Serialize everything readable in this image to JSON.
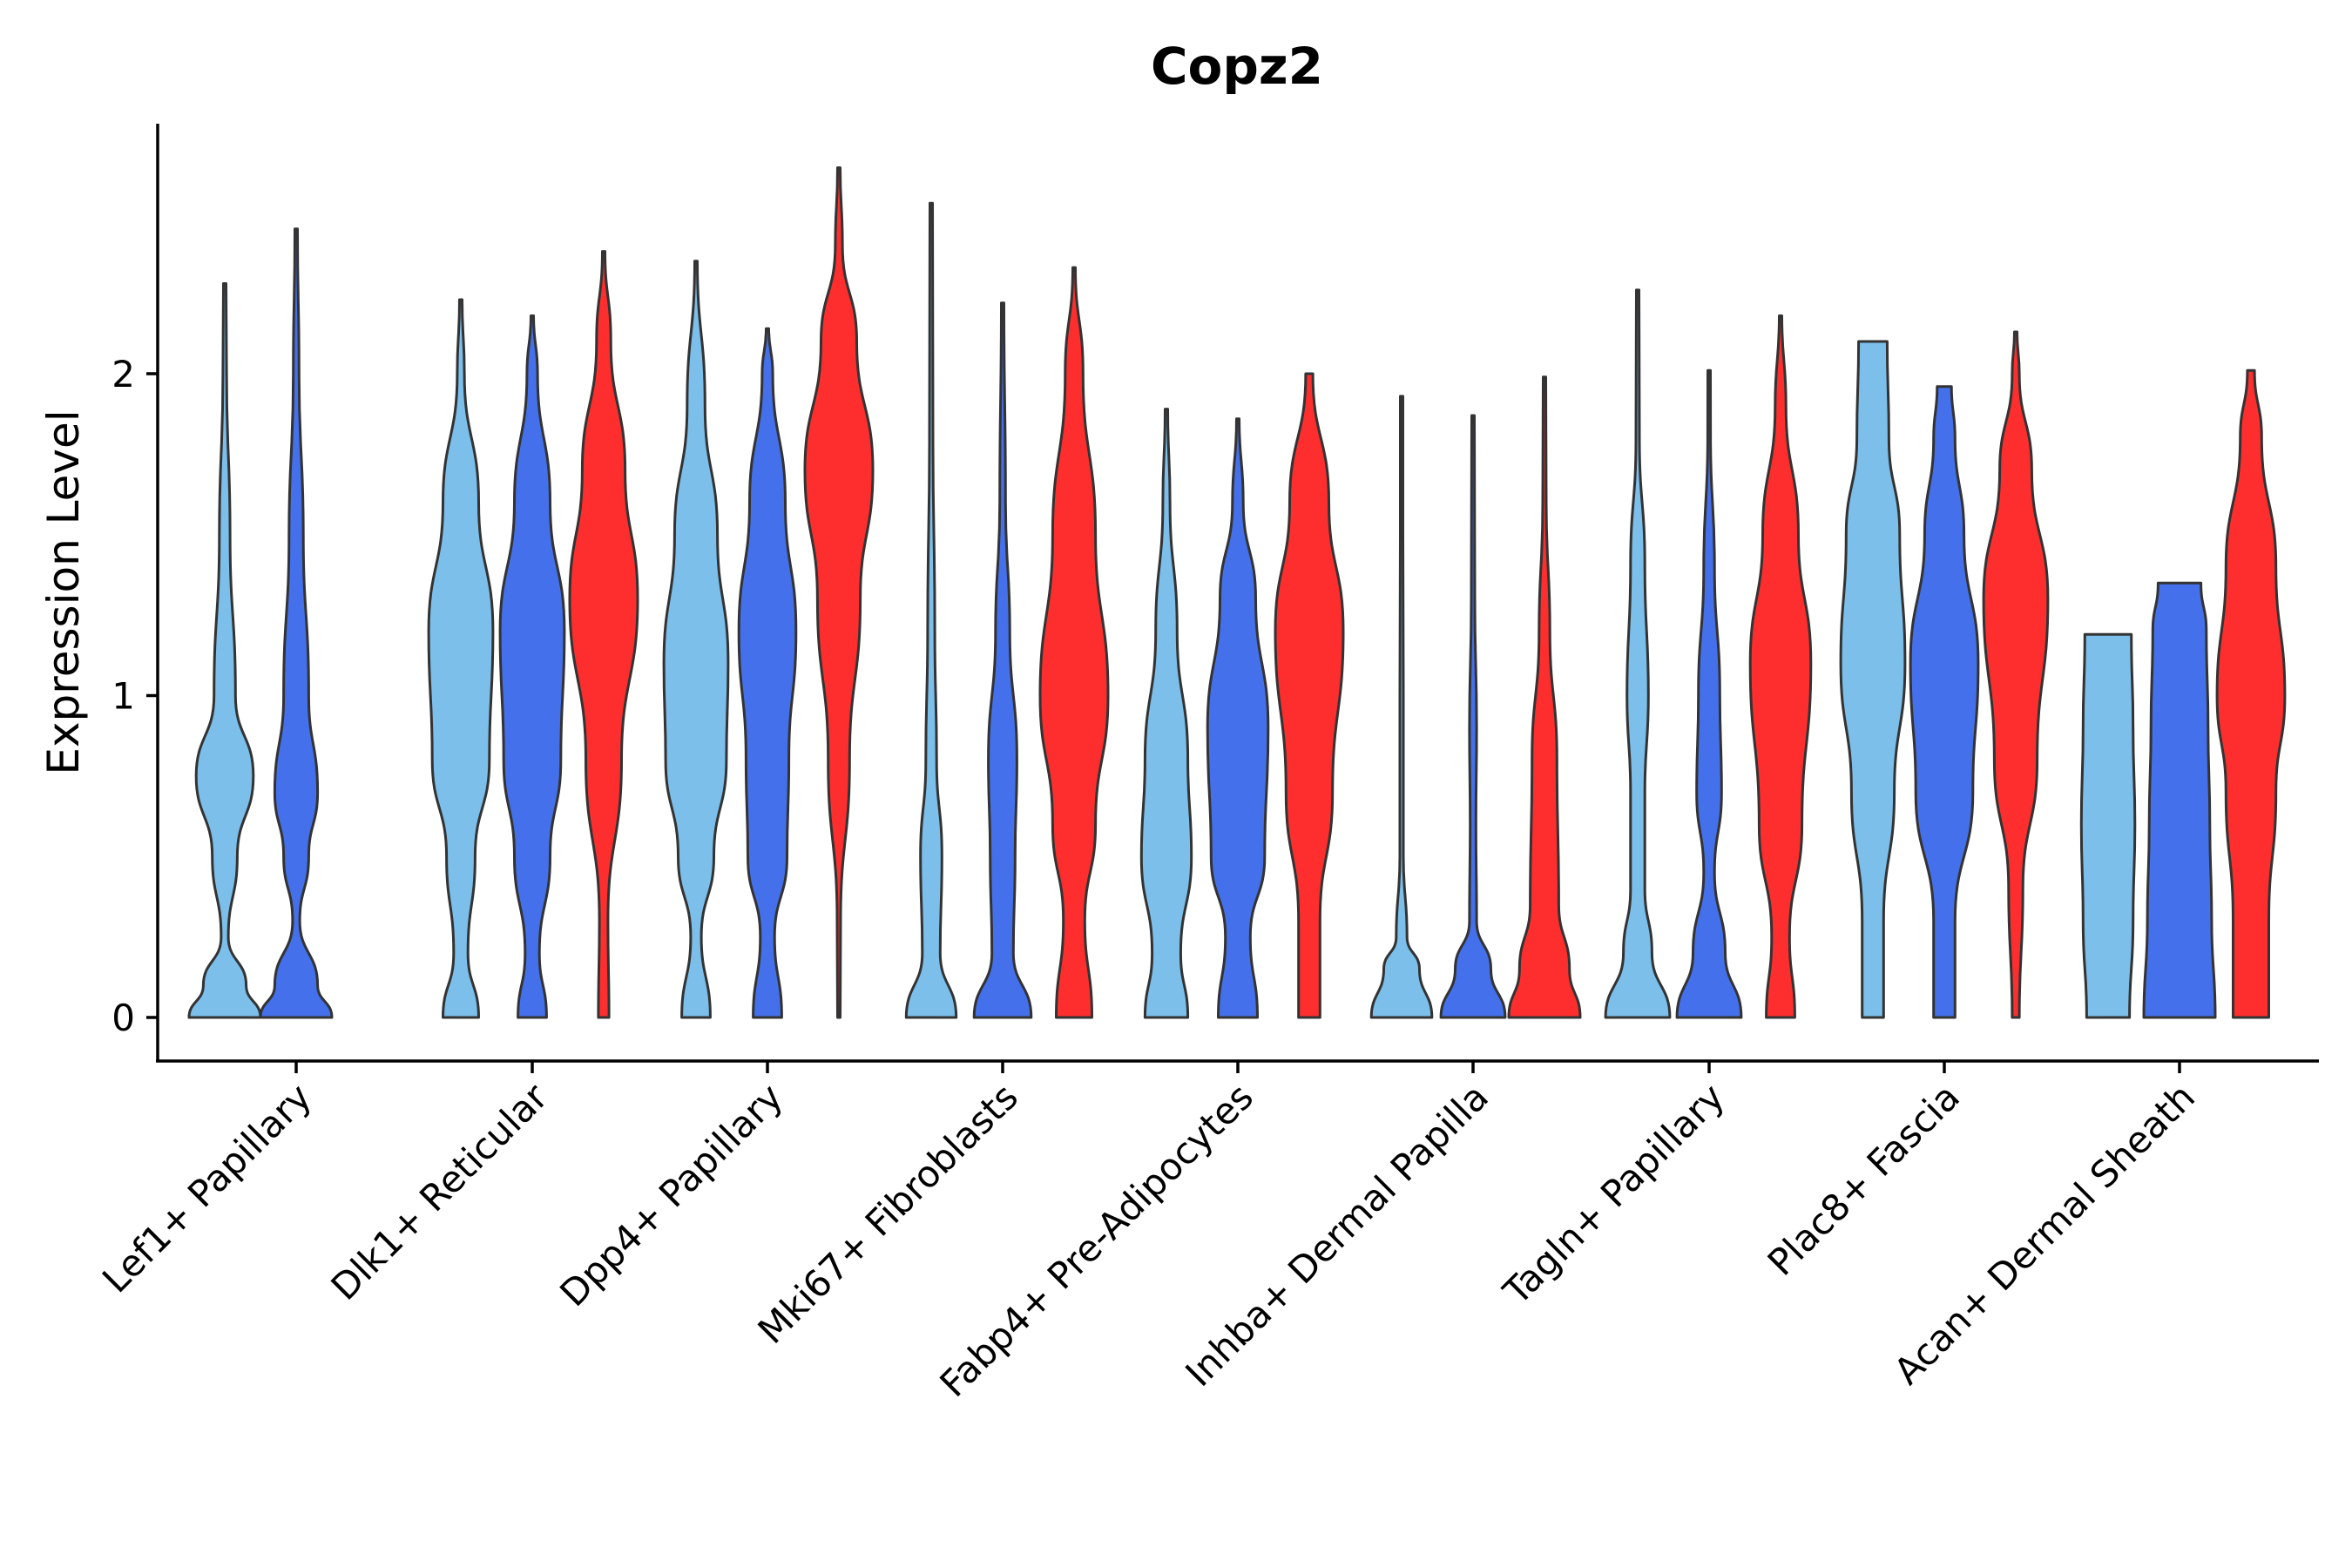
{
  "chart_data": {
    "type": "violin",
    "title": "Copz2",
    "xlabel": "",
    "ylabel": "Expression Level",
    "ylim": [
      -0.13,
      2.8
    ],
    "yticks": [
      0,
      1,
      2
    ],
    "categories": [
      "Lef1+ Papillary",
      "Dlk1+ Reticular",
      "Dpp4+ Papillary",
      "Mki67+ Fibroblasts",
      "Fabp4+ Pre-Adipocytes",
      "Inhba+ Dermal Papilla",
      "Tagln+ Papillary",
      "Plac8+ Fascia",
      "Acan+ Dermal Sheath"
    ],
    "series": [
      {
        "name": "group-1",
        "color": "#7bbfea",
        "max": [
          2.28,
          2.23,
          2.35,
          2.53,
          1.89,
          1.93,
          2.26,
          2.1,
          1.19
        ]
      },
      {
        "name": "group-2",
        "color": "#4470eb",
        "max": [
          2.45,
          2.18,
          2.14,
          2.22,
          1.86,
          1.87,
          2.01,
          1.96,
          1.35
        ]
      },
      {
        "name": "group-3",
        "color": "#ff2e2e",
        "max": [
          null,
          2.38,
          2.64,
          2.33,
          2.0,
          1.99,
          2.18,
          2.13,
          2.01
        ]
      }
    ]
  }
}
